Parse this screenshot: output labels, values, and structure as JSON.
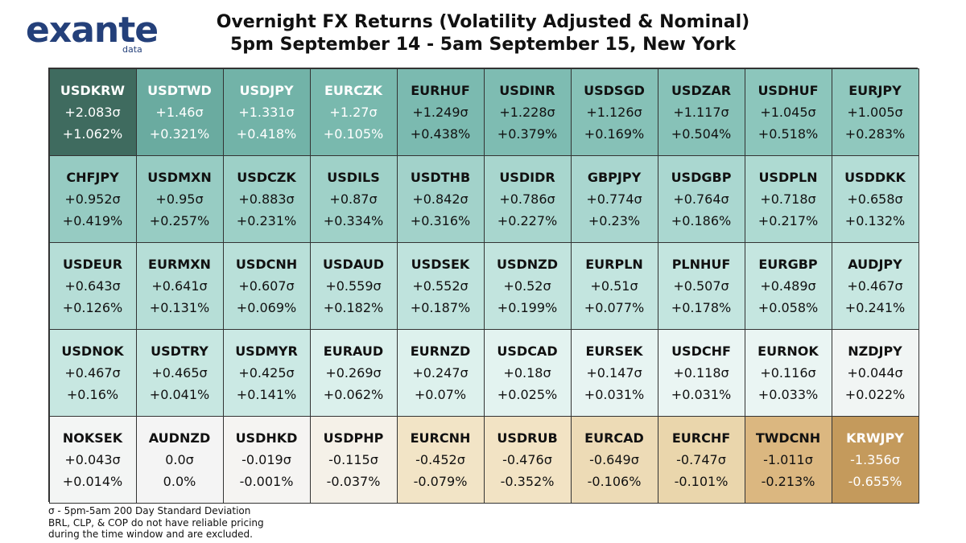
{
  "logo": {
    "word_part1": "ex",
    "word_part2": "ante",
    "sub": "data"
  },
  "title_line1": "Overnight FX Returns (Volatility Adjusted & Nominal)",
  "title_line2": "5pm September 14 - 5am September 15, New York",
  "colors": {
    "text_dark": "#111111",
    "text_light": "#ffffff",
    "border": "#333333"
  },
  "chart_data": {
    "type": "table",
    "columns": 10,
    "rows": 5,
    "value_units": [
      "σ",
      "%"
    ],
    "cells": [
      {
        "pair": "USDKRW",
        "sigma": "+2.083σ",
        "pct": "+1.062%",
        "bg": "#3f6b5f",
        "fg": "#ffffff"
      },
      {
        "pair": "USDTWD",
        "sigma": "+1.46σ",
        "pct": "+0.321%",
        "bg": "#6aaba0",
        "fg": "#ffffff"
      },
      {
        "pair": "USDJPY",
        "sigma": "+1.331σ",
        "pct": "+0.418%",
        "bg": "#72b3a8",
        "fg": "#ffffff"
      },
      {
        "pair": "EURCZK",
        "sigma": "+1.27σ",
        "pct": "+0.105%",
        "bg": "#79b9ae",
        "fg": "#ffffff"
      },
      {
        "pair": "EURHUF",
        "sigma": "+1.249σ",
        "pct": "+0.438%",
        "bg": "#7bbab0",
        "fg": "#111111"
      },
      {
        "pair": "USDINR",
        "sigma": "+1.228σ",
        "pct": "+0.379%",
        "bg": "#7ebcb2",
        "fg": "#111111"
      },
      {
        "pair": "USDSGD",
        "sigma": "+1.126σ",
        "pct": "+0.169%",
        "bg": "#86c1b7",
        "fg": "#111111"
      },
      {
        "pair": "USDZAR",
        "sigma": "+1.117σ",
        "pct": "+0.504%",
        "bg": "#87c2b8",
        "fg": "#111111"
      },
      {
        "pair": "USDHUF",
        "sigma": "+1.045σ",
        "pct": "+0.518%",
        "bg": "#8cc6bc",
        "fg": "#111111"
      },
      {
        "pair": "EURJPY",
        "sigma": "+1.005σ",
        "pct": "+0.283%",
        "bg": "#90c8be",
        "fg": "#111111"
      },
      {
        "pair": "CHFJPY",
        "sigma": "+0.952σ",
        "pct": "+0.419%",
        "bg": "#96cbc2",
        "fg": "#111111"
      },
      {
        "pair": "USDMXN",
        "sigma": "+0.95σ",
        "pct": "+0.257%",
        "bg": "#97ccc3",
        "fg": "#111111"
      },
      {
        "pair": "USDCZK",
        "sigma": "+0.883σ",
        "pct": "+0.231%",
        "bg": "#9dd0c7",
        "fg": "#111111"
      },
      {
        "pair": "USDILS",
        "sigma": "+0.87σ",
        "pct": "+0.334%",
        "bg": "#9fd1c8",
        "fg": "#111111"
      },
      {
        "pair": "USDTHB",
        "sigma": "+0.842σ",
        "pct": "+0.316%",
        "bg": "#a2d2ca",
        "fg": "#111111"
      },
      {
        "pair": "USDIDR",
        "sigma": "+0.786σ",
        "pct": "+0.227%",
        "bg": "#a8d6ce",
        "fg": "#111111"
      },
      {
        "pair": "GBPJPY",
        "sigma": "+0.774σ",
        "pct": "+0.23%",
        "bg": "#a9d6cf",
        "fg": "#111111"
      },
      {
        "pair": "USDGBP",
        "sigma": "+0.764σ",
        "pct": "+0.186%",
        "bg": "#aad7d0",
        "fg": "#111111"
      },
      {
        "pair": "USDPLN",
        "sigma": "+0.718σ",
        "pct": "+0.217%",
        "bg": "#aedad2",
        "fg": "#111111"
      },
      {
        "pair": "USDDKK",
        "sigma": "+0.658σ",
        "pct": "+0.132%",
        "bg": "#b4ddd6",
        "fg": "#111111"
      },
      {
        "pair": "USDEUR",
        "sigma": "+0.643σ",
        "pct": "+0.126%",
        "bg": "#b6ded7",
        "fg": "#111111"
      },
      {
        "pair": "EURMXN",
        "sigma": "+0.641σ",
        "pct": "+0.131%",
        "bg": "#b6ded7",
        "fg": "#111111"
      },
      {
        "pair": "USDCNH",
        "sigma": "+0.607σ",
        "pct": "+0.069%",
        "bg": "#b9e0d9",
        "fg": "#111111"
      },
      {
        "pair": "USDAUD",
        "sigma": "+0.559σ",
        "pct": "+0.182%",
        "bg": "#bee2dc",
        "fg": "#111111"
      },
      {
        "pair": "USDSEK",
        "sigma": "+0.552σ",
        "pct": "+0.187%",
        "bg": "#bfe3dd",
        "fg": "#111111"
      },
      {
        "pair": "USDNZD",
        "sigma": "+0.52σ",
        "pct": "+0.199%",
        "bg": "#c2e4de",
        "fg": "#111111"
      },
      {
        "pair": "EURPLN",
        "sigma": "+0.51σ",
        "pct": "+0.077%",
        "bg": "#c3e5df",
        "fg": "#111111"
      },
      {
        "pair": "PLNHUF",
        "sigma": "+0.507σ",
        "pct": "+0.178%",
        "bg": "#c3e5df",
        "fg": "#111111"
      },
      {
        "pair": "EURGBP",
        "sigma": "+0.489σ",
        "pct": "+0.058%",
        "bg": "#c5e6e0",
        "fg": "#111111"
      },
      {
        "pair": "AUDJPY",
        "sigma": "+0.467σ",
        "pct": "+0.241%",
        "bg": "#c7e7e1",
        "fg": "#111111"
      },
      {
        "pair": "USDNOK",
        "sigma": "+0.467σ",
        "pct": "+0.16%",
        "bg": "#c7e7e1",
        "fg": "#111111"
      },
      {
        "pair": "USDTRY",
        "sigma": "+0.465σ",
        "pct": "+0.041%",
        "bg": "#c7e7e1",
        "fg": "#111111"
      },
      {
        "pair": "USDMYR",
        "sigma": "+0.425σ",
        "pct": "+0.141%",
        "bg": "#cbe9e4",
        "fg": "#111111"
      },
      {
        "pair": "EURAUD",
        "sigma": "+0.269σ",
        "pct": "+0.062%",
        "bg": "#dbf0ec",
        "fg": "#111111"
      },
      {
        "pair": "EURNZD",
        "sigma": "+0.247σ",
        "pct": "+0.07%",
        "bg": "#ddf1ed",
        "fg": "#111111"
      },
      {
        "pair": "USDCAD",
        "sigma": "+0.18σ",
        "pct": "+0.025%",
        "bg": "#e3f3f0",
        "fg": "#111111"
      },
      {
        "pair": "EURSEK",
        "sigma": "+0.147σ",
        "pct": "+0.031%",
        "bg": "#e7f4f2",
        "fg": "#111111"
      },
      {
        "pair": "USDCHF",
        "sigma": "+0.118σ",
        "pct": "+0.031%",
        "bg": "#eaf5f3",
        "fg": "#111111"
      },
      {
        "pair": "EURNOK",
        "sigma": "+0.116σ",
        "pct": "+0.033%",
        "bg": "#eaf5f3",
        "fg": "#111111"
      },
      {
        "pair": "NZDJPY",
        "sigma": "+0.044σ",
        "pct": "+0.022%",
        "bg": "#f1f5f4",
        "fg": "#111111"
      },
      {
        "pair": "NOKSEK",
        "sigma": "+0.043σ",
        "pct": "+0.014%",
        "bg": "#f3f5f4",
        "fg": "#111111"
      },
      {
        "pair": "AUDNZD",
        "sigma": "0.0σ",
        "pct": "0.0%",
        "bg": "#f4f4f4",
        "fg": "#111111"
      },
      {
        "pair": "USDHKD",
        "sigma": "-0.019σ",
        "pct": "-0.001%",
        "bg": "#f5f4f2",
        "fg": "#111111"
      },
      {
        "pair": "USDPHP",
        "sigma": "-0.115σ",
        "pct": "-0.037%",
        "bg": "#f5f1e8",
        "fg": "#111111"
      },
      {
        "pair": "EURCNH",
        "sigma": "-0.452σ",
        "pct": "-0.079%",
        "bg": "#f2e4c6",
        "fg": "#111111"
      },
      {
        "pair": "USDRUB",
        "sigma": "-0.476σ",
        "pct": "-0.352%",
        "bg": "#f2e3c4",
        "fg": "#111111"
      },
      {
        "pair": "EURCAD",
        "sigma": "-0.649σ",
        "pct": "-0.106%",
        "bg": "#eddbb6",
        "fg": "#111111"
      },
      {
        "pair": "EURCHF",
        "sigma": "-0.747σ",
        "pct": "-0.101%",
        "bg": "#ead6ac",
        "fg": "#111111"
      },
      {
        "pair": "TWDCNH",
        "sigma": "-1.011σ",
        "pct": "-0.213%",
        "bg": "#dbb780",
        "fg": "#111111"
      },
      {
        "pair": "KRWJPY",
        "sigma": "-1.356σ",
        "pct": "-0.655%",
        "bg": "#c49a5c",
        "fg": "#ffffff"
      }
    ]
  },
  "footnote": {
    "line1": "σ - 5pm-5am 200 Day Standard Deviation",
    "line2": "BRL, CLP, & COP do not have reliable pricing",
    "line3": "during the time window and are excluded."
  }
}
